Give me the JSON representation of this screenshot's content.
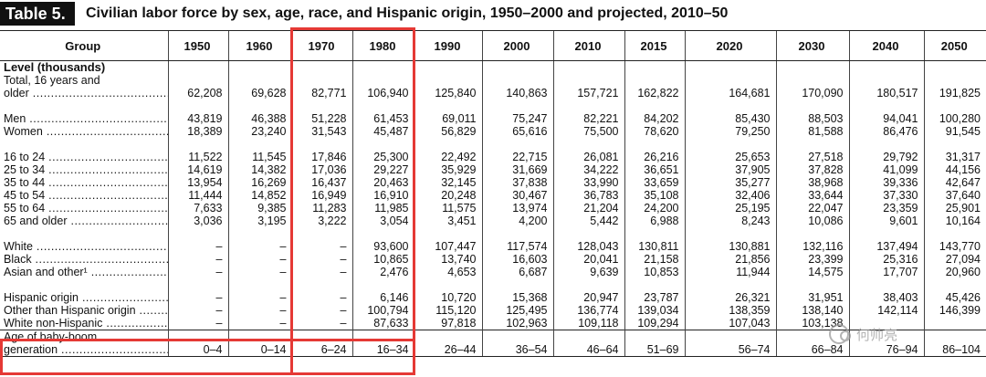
{
  "title": {
    "badge": "Table 5.",
    "text": "Civilian labor force by sex, age, race, and Hispanic origin, 1950–2000 and projected, 2010–50"
  },
  "header": {
    "group": "Group",
    "years": [
      "1950",
      "1960",
      "1970",
      "1980",
      "1990",
      "2000",
      "2010",
      "2015",
      "2020",
      "2030",
      "2040",
      "2050"
    ]
  },
  "section_label": "Level (thousands)",
  "rows": [
    {
      "label_a": "Total, 16 years and",
      "label_b": "older",
      "values": [
        "62,208",
        "69,628",
        "82,771",
        "106,940",
        "125,840",
        "140,863",
        "157,721",
        "162,822",
        "164,681",
        "170,090",
        "180,517",
        "191,825"
      ]
    },
    {
      "label": "Men",
      "values": [
        "43,819",
        "46,388",
        "51,228",
        "61,453",
        "69,011",
        "75,247",
        "82,221",
        "84,202",
        "85,430",
        "88,503",
        "94,041",
        "100,280"
      ]
    },
    {
      "label": "Women",
      "values": [
        "18,389",
        "23,240",
        "31,543",
        "45,487",
        "56,829",
        "65,616",
        "75,500",
        "78,620",
        "79,250",
        "81,588",
        "86,476",
        "91,545"
      ]
    },
    {
      "label": "16 to 24",
      "values": [
        "11,522",
        "11,545",
        "17,846",
        "25,300",
        "22,492",
        "22,715",
        "26,081",
        "26,216",
        "25,653",
        "27,518",
        "29,792",
        "31,317"
      ]
    },
    {
      "label": "25 to 34",
      "values": [
        "14,619",
        "14,382",
        "17,036",
        "29,227",
        "35,929",
        "31,669",
        "34,222",
        "36,651",
        "37,905",
        "37,828",
        "41,099",
        "44,156"
      ]
    },
    {
      "label": "35 to 44",
      "values": [
        "13,954",
        "16,269",
        "16,437",
        "20,463",
        "32,145",
        "37,838",
        "33,990",
        "33,659",
        "35,277",
        "38,968",
        "39,336",
        "42,647"
      ]
    },
    {
      "label": "45 to 54",
      "values": [
        "11,444",
        "14,852",
        "16,949",
        "16,910",
        "20,248",
        "30,467",
        "36,783",
        "35,108",
        "32,406",
        "33,644",
        "37,330",
        "37,640"
      ]
    },
    {
      "label": "55 to 64",
      "values": [
        "7,633",
        "9,385",
        "11,283",
        "11,985",
        "11,575",
        "13,974",
        "21,204",
        "24,200",
        "25,195",
        "22,047",
        "23,359",
        "25,901"
      ]
    },
    {
      "label": "65 and older",
      "values": [
        "3,036",
        "3,195",
        "3,222",
        "3,054",
        "3,451",
        "4,200",
        "5,442",
        "6,988",
        "8,243",
        "10,086",
        "9,601",
        "10,164"
      ]
    },
    {
      "label": "White",
      "values": [
        "–",
        "–",
        "–",
        "93,600",
        "107,447",
        "117,574",
        "128,043",
        "130,811",
        "130,881",
        "132,116",
        "137,494",
        "143,770"
      ]
    },
    {
      "label": "Black",
      "values": [
        "–",
        "–",
        "–",
        "10,865",
        "13,740",
        "16,603",
        "20,041",
        "21,158",
        "21,856",
        "23,399",
        "25,316",
        "27,094"
      ]
    },
    {
      "label": "Asian and other¹",
      "values": [
        "–",
        "–",
        "–",
        "2,476",
        "4,653",
        "6,687",
        "9,639",
        "10,853",
        "11,944",
        "14,575",
        "17,707",
        "20,960"
      ]
    },
    {
      "label": "Hispanic origin",
      "values": [
        "–",
        "–",
        "–",
        "6,146",
        "10,720",
        "15,368",
        "20,947",
        "23,787",
        "26,321",
        "31,951",
        "38,403",
        "45,426"
      ]
    },
    {
      "label": "Other than Hispanic origin",
      "values": [
        "–",
        "–",
        "–",
        "100,794",
        "115,120",
        "125,495",
        "136,774",
        "139,034",
        "138,359",
        "138,140",
        "142,114",
        "146,399"
      ]
    },
    {
      "label": "White non-Hispanic",
      "values": [
        "–",
        "–",
        "–",
        "87,633",
        "97,818",
        "102,963",
        "109,118",
        "109,294",
        "107,043",
        "103,138",
        "",
        ""
      ]
    }
  ],
  "boom": {
    "label_a": "Age of baby-boom",
    "label_b": "generation",
    "values": [
      "0–4",
      "0–14",
      "6–24",
      "16–34",
      "26–44",
      "36–54",
      "46–64",
      "51–69",
      "56–74",
      "66–84",
      "76–94",
      "86–104"
    ]
  },
  "watermark": {
    "text": "何帅亮",
    "icon": "wechat-icon"
  },
  "colors": {
    "highlight": "#e53935",
    "badge_bg": "#111111"
  }
}
